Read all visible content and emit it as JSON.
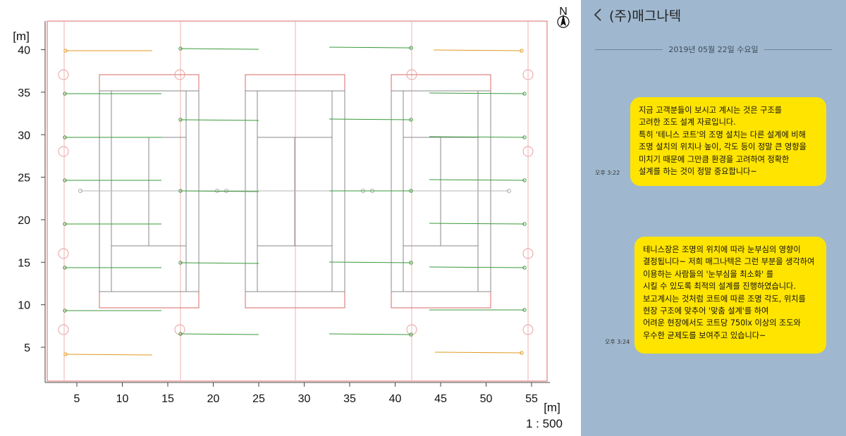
{
  "plan": {
    "y_unit": "[m]",
    "x_unit": "[m]",
    "scale": "1 : 500",
    "north": "N",
    "x_ticks": [
      "5",
      "10",
      "15",
      "20",
      "25",
      "30",
      "35",
      "40",
      "45",
      "50",
      "55"
    ],
    "y_ticks": [
      "5",
      "10",
      "15",
      "20",
      "25",
      "30",
      "35",
      "40"
    ],
    "colors": {
      "boundary": "#d86a6a",
      "court": "#8a8a8a",
      "green_light": "#3a9a3a",
      "orange_light": "#e09a20",
      "aim_line": "#b5b5b5"
    }
  },
  "chat": {
    "title": "(주)매그나텍",
    "date": "2019년 05월 22일 수요일",
    "messages": [
      {
        "time": "오후 3:22",
        "lines": [
          "지금 고객분들이 보시고 계시는 것은 구조를",
          "고려한 조도 설계 자료입니다.",
          "특히 '테니스 코트'의 조명 설치는 다른 설계에 비해",
          "조명 설치의 위치나 높이, 각도 등이 정말 큰 영향을",
          "미치기 때문에 그만큼 환경을 고려하여 정확한",
          "설계를 하는 것이 정말 중요합니다~"
        ]
      },
      {
        "time": "오후 3:24",
        "lines": [
          "테니스장은 조명의 위치에 따라 눈부심의 영향이",
          "결정됩니다~ 저희 매그나텍은 그런 부분을 생각하여",
          "이용하는 사람들의 '눈부심을 최소화' 를",
          "시킬 수 있도록 최적의 설계를 진행하였습니다.",
          "보고계시는 것처럼 코트에 따른 조명 각도, 위치를",
          "현장 구조에 맞추어 '맞춤 설계'를 하여",
          "어려운 현장에서도 코트당 750lx 이상의 조도와",
          "우수한 균제도를 보여주고 있습니다~"
        ]
      }
    ]
  }
}
